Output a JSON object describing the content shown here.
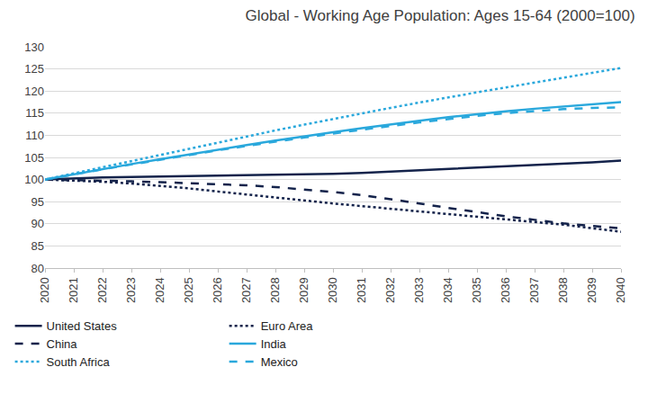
{
  "chart_data": {
    "type": "line",
    "title": "Global - Working Age Population: Ages 15-64 (2000=100)",
    "categories": [
      "2020",
      "2021",
      "2022",
      "2023",
      "2024",
      "2025",
      "2026",
      "2027",
      "2028",
      "2029",
      "2030",
      "2031",
      "2032",
      "2033",
      "2034",
      "2035",
      "2036",
      "2037",
      "2038",
      "2039",
      "2040"
    ],
    "series": [
      {
        "name": "United States",
        "color": "#14234b",
        "line_style": "solid",
        "values": [
          100,
          100.3,
          100.5,
          100.6,
          100.7,
          100.8,
          100.8,
          100.9,
          101.0,
          101.1,
          101.3,
          101.5,
          101.8,
          102.0,
          102.3,
          102.6,
          102.9,
          103.2,
          103.5,
          103.9,
          104.3
        ]
      },
      {
        "name": "Euro Area",
        "color": "#14234b",
        "line_style": "dot",
        "values": [
          100,
          99.8,
          99.5,
          99.1,
          98.6,
          98.0,
          97.3,
          96.6,
          95.9,
          95.2,
          94.6,
          94.0,
          93.4,
          92.8,
          92.2,
          91.6,
          91.0,
          90.4,
          89.8,
          89.0,
          88.2
        ]
      },
      {
        "name": "China",
        "color": "#14234b",
        "line_style": "dash",
        "values": [
          100,
          99.9,
          99.8,
          99.6,
          99.4,
          99.2,
          99.0,
          98.7,
          98.3,
          97.8,
          97.2,
          96.5,
          95.6,
          94.6,
          93.6,
          92.6,
          91.7,
          90.9,
          90.1,
          89.5,
          89.0
        ]
      },
      {
        "name": "India",
        "color": "#2aa8dc",
        "line_style": "solid",
        "values": [
          100,
          101.2,
          102.4,
          103.5,
          104.6,
          105.7,
          106.8,
          107.8,
          108.8,
          109.8,
          110.7,
          111.6,
          112.5,
          113.3,
          114.1,
          114.8,
          115.4,
          116.0,
          116.5,
          117.0,
          117.5
        ]
      },
      {
        "name": "South Africa",
        "color": "#2aa8dc",
        "line_style": "dot",
        "values": [
          100,
          101.4,
          102.8,
          104.1,
          105.5,
          106.9,
          108.3,
          109.7,
          111.1,
          112.4,
          113.7,
          115.0,
          116.2,
          117.4,
          118.6,
          119.7,
          120.8,
          121.9,
          123.0,
          124.1,
          125.2
        ]
      },
      {
        "name": "Mexico",
        "color": "#2aa8dc",
        "line_style": "dash",
        "values": [
          100,
          101.2,
          102.3,
          103.4,
          104.5,
          105.6,
          106.6,
          107.6,
          108.6,
          109.5,
          110.4,
          111.3,
          112.1,
          112.9,
          113.7,
          114.4,
          115.0,
          115.5,
          115.9,
          116.2,
          116.3
        ]
      }
    ],
    "ylim": [
      80,
      130
    ],
    "yticks": [
      80,
      85,
      90,
      95,
      100,
      105,
      110,
      115,
      120,
      125,
      130
    ],
    "grid": true,
    "legend": "bottom"
  }
}
